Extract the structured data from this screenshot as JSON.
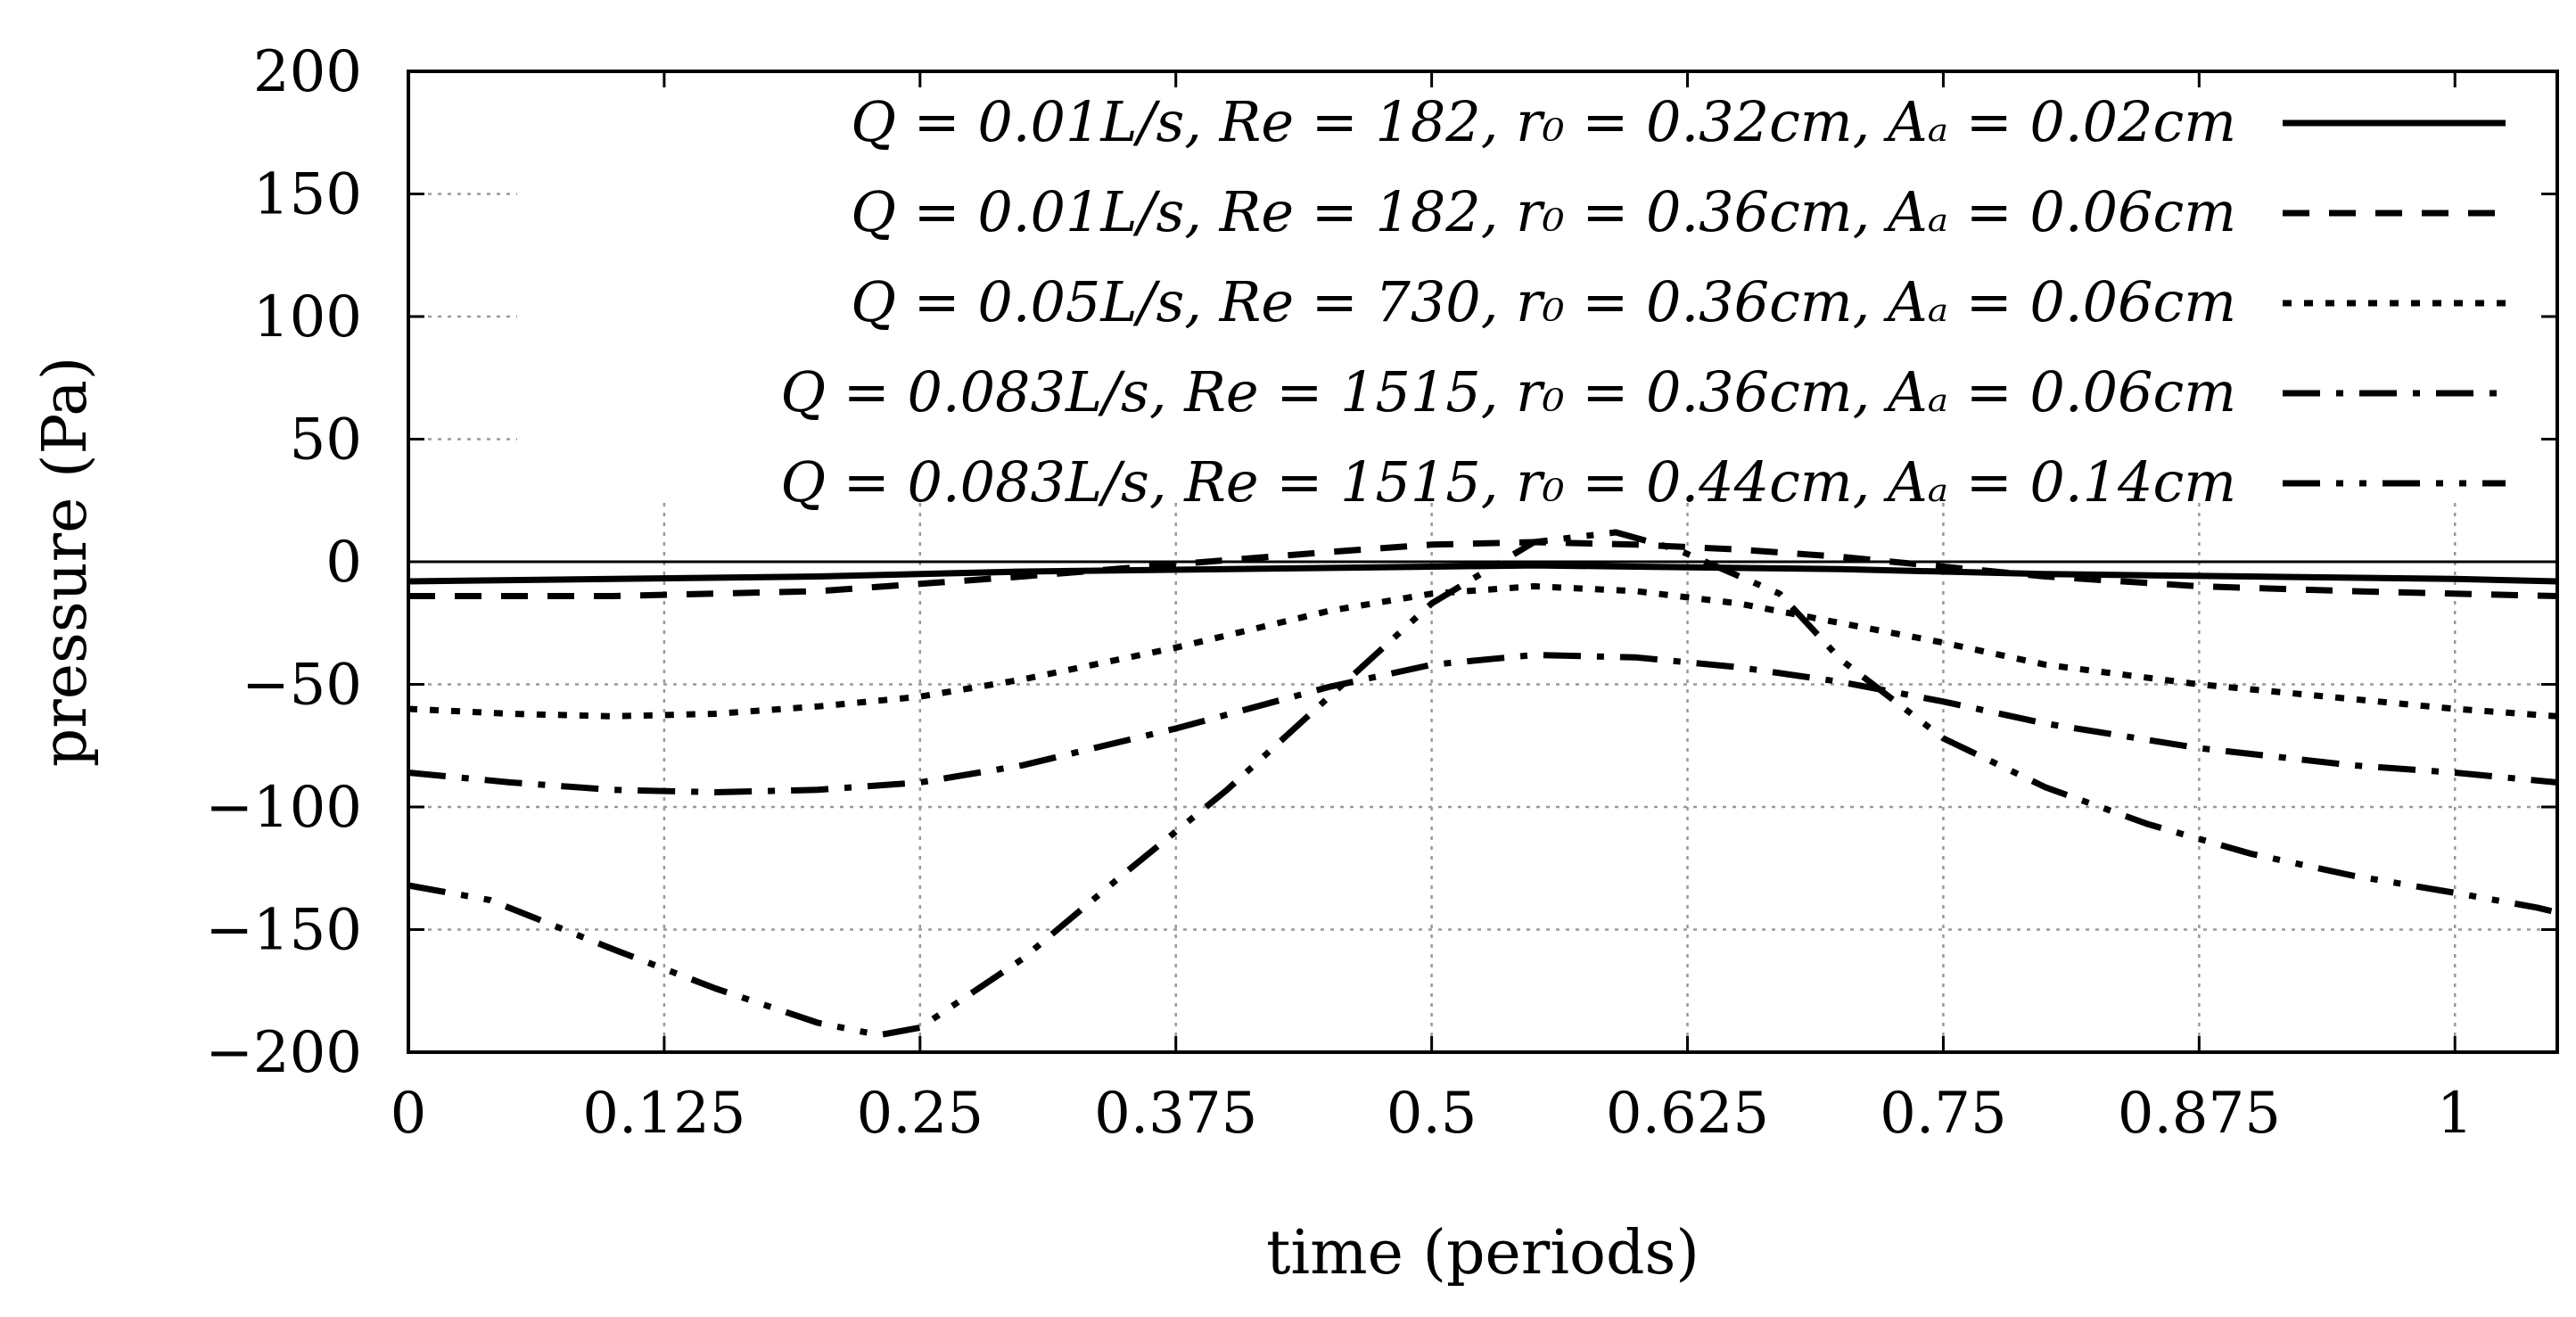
{
  "chart_data": {
    "type": "line",
    "title": "",
    "xlabel": "time (periods)",
    "ylabel": "pressure (Pa)",
    "xlim": [
      0,
      1.05
    ],
    "ylim": [
      -200,
      200
    ],
    "xticks": [
      0,
      0.125,
      0.25,
      0.375,
      0.5,
      0.625,
      0.75,
      0.875,
      1
    ],
    "xtick_labels": [
      "0",
      "0.125",
      "0.25",
      "0.375",
      "0.5",
      "0.625",
      "0.75",
      "0.875",
      "1"
    ],
    "yticks": [
      200,
      150,
      100,
      50,
      0,
      -50,
      -100,
      -150,
      -200
    ],
    "ytick_labels": [
      "200",
      "150",
      "100",
      "50",
      "0",
      "−50",
      "−100",
      "−150",
      "−200"
    ],
    "grid": true,
    "legend_position": "top-right",
    "series": [
      {
        "name": "Q = 0.01L/s, Re = 182, r_b0 = 0.32cm, A_b = 0.02cm",
        "label": "Q = 0.01L/s, Re = 182, r₀ = 0.32cm, Aₐ = 0.02cm",
        "dash": "solid",
        "x": [
          0,
          0.1,
          0.2,
          0.3,
          0.4,
          0.5,
          0.55,
          0.6,
          0.7,
          0.8,
          0.9,
          1.0,
          1.05
        ],
        "y": [
          -8,
          -7,
          -6,
          -4,
          -3,
          -2,
          -1.5,
          -2,
          -3,
          -5,
          -6,
          -7,
          -8
        ]
      },
      {
        "name": "Q = 0.01L/s, Re = 182, r_b0 = 0.36cm, A_b = 0.06cm",
        "label": "Q = 0.01L/s, Re = 182, r₀ = 0.36cm, Aₐ = 0.06cm",
        "dash": "dashed",
        "x": [
          0,
          0.1,
          0.2,
          0.25,
          0.3,
          0.375,
          0.45,
          0.5,
          0.55,
          0.6,
          0.65,
          0.7,
          0.75,
          0.8,
          0.875,
          0.95,
          1.05
        ],
        "y": [
          -14,
          -14,
          -12,
          -9,
          -6,
          -1,
          4,
          7,
          8,
          7,
          5,
          2,
          -2,
          -6,
          -10,
          -12,
          -14
        ]
      },
      {
        "name": "Q = 0.05L/s, Re = 730, r_b0 = 0.36cm, A_b = 0.06cm",
        "label": "Q = 0.05L/s, Re = 730, r₀ = 0.36cm, Aₐ = 0.06cm",
        "dash": "dotted",
        "x": [
          0,
          0.05,
          0.1,
          0.15,
          0.2,
          0.25,
          0.3,
          0.375,
          0.45,
          0.5,
          0.55,
          0.6,
          0.65,
          0.7,
          0.75,
          0.8,
          0.875,
          0.95,
          1.0,
          1.05
        ],
        "y": [
          -60,
          -62,
          -63,
          -62,
          -59,
          -55,
          -48,
          -35,
          -20,
          -13,
          -10,
          -12,
          -17,
          -25,
          -33,
          -42,
          -50,
          -56,
          -60,
          -63
        ]
      },
      {
        "name": "Q = 0.083L/s, Re = 1515, r_b0 = 0.36cm, A_b = 0.06cm",
        "label": "Q = 0.083L/s, Re = 1515, r₀ = 0.36cm, Aₐ = 0.06cm",
        "dash": "dash-dot",
        "x": [
          0,
          0.05,
          0.1,
          0.15,
          0.2,
          0.25,
          0.3,
          0.375,
          0.45,
          0.5,
          0.55,
          0.6,
          0.65,
          0.7,
          0.75,
          0.8,
          0.875,
          0.95,
          1.0,
          1.05
        ],
        "y": [
          -86,
          -90,
          -93,
          -94,
          -93,
          -90,
          -83,
          -68,
          -51,
          -42,
          -38,
          -39,
          -43,
          -49,
          -57,
          -66,
          -76,
          -83,
          -86,
          -90
        ]
      },
      {
        "name": "Q = 0.083L/s, Re = 1515, r_b0 = 0.44cm, A_b = 0.14cm",
        "label": "Q = 0.083L/s, Re = 1515, r₀ = 0.44cm, Aₐ = 0.14cm",
        "dash": "dash-dot-dot",
        "x": [
          0,
          0.04,
          0.1,
          0.15,
          0.2,
          0.23,
          0.25,
          0.3,
          0.35,
          0.4,
          0.45,
          0.5,
          0.55,
          0.59,
          0.62,
          0.67,
          0.7,
          0.75,
          0.8,
          0.85,
          0.9,
          0.95,
          1.0,
          1.04,
          1.05
        ],
        "y": [
          -132,
          -138,
          -158,
          -174,
          -188,
          -193,
          -190,
          -162,
          -127,
          -93,
          -55,
          -17,
          8,
          12,
          5,
          -13,
          -40,
          -72,
          -92,
          -107,
          -119,
          -128,
          -135,
          -141,
          -143
        ]
      }
    ]
  }
}
